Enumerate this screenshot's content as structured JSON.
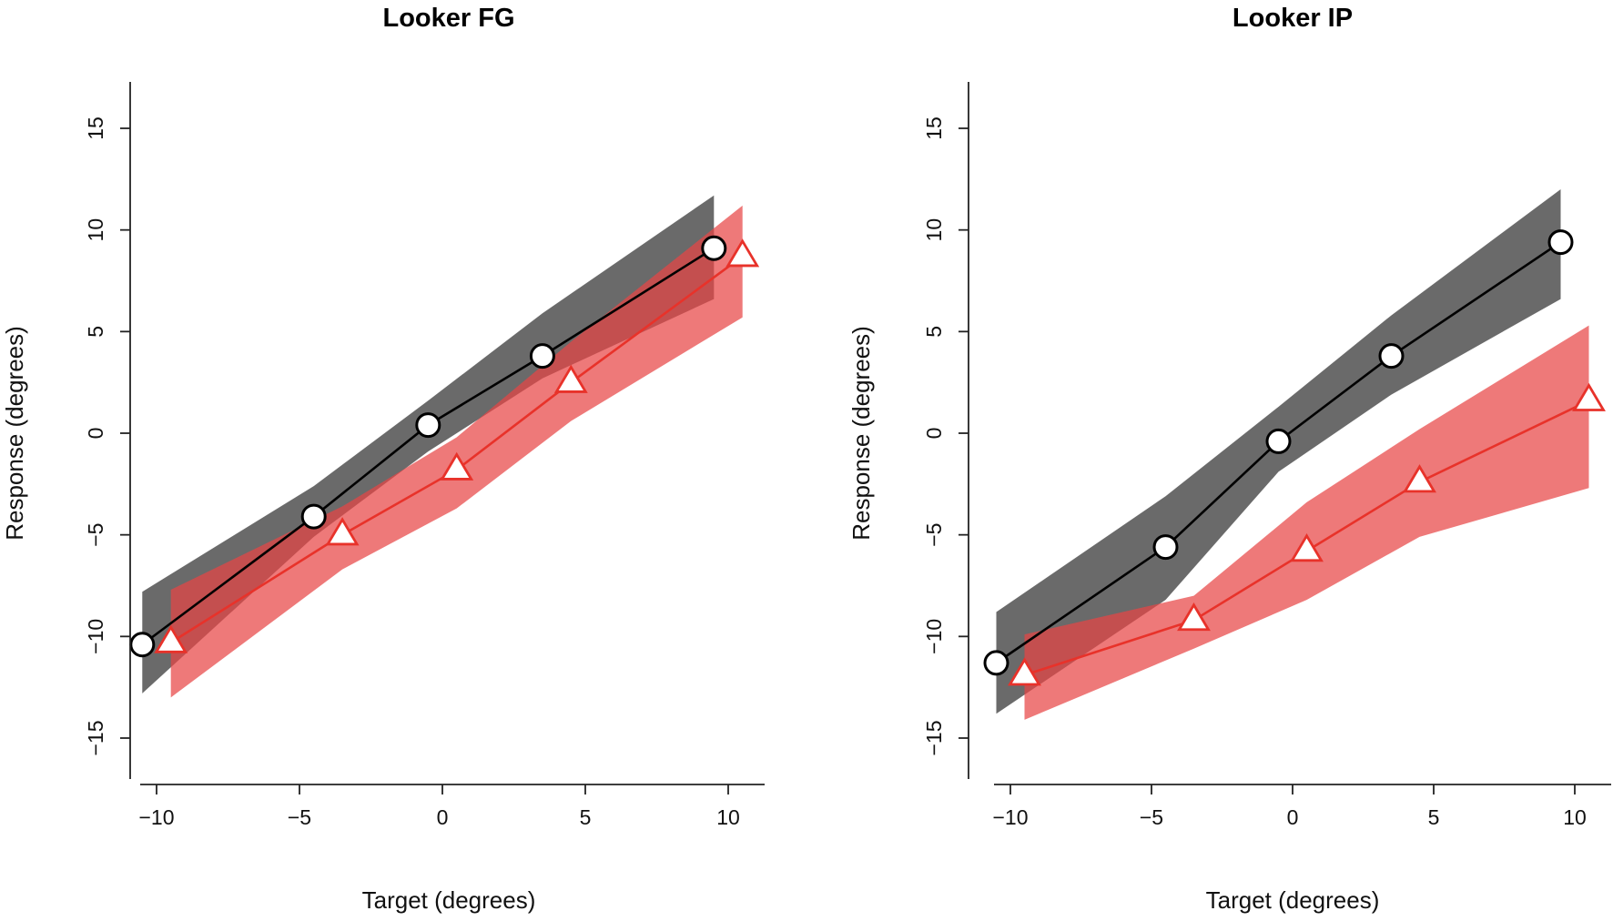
{
  "chart_data": [
    {
      "type": "line",
      "title": "Looker FG",
      "xlabel": "Target (degrees)",
      "ylabel": "Response (degrees)",
      "xlim": [
        -11,
        11
      ],
      "ylim": [
        -17,
        17
      ],
      "xticks": [
        -10,
        -5,
        0,
        5,
        10
      ],
      "yticks": [
        -15,
        -10,
        -5,
        0,
        5,
        10,
        15
      ],
      "xtick_labels": [
        "−10",
        "−5",
        "0",
        "5",
        "10"
      ],
      "ytick_labels": [
        "−15",
        "−10",
        "−5",
        "0",
        "5",
        "10",
        "15"
      ],
      "series": [
        {
          "name": "black-circles",
          "marker": "circle",
          "color": "#000000",
          "band_color": "#5a5a5a",
          "x": [
            -10.5,
            -4.5,
            -0.5,
            3.5,
            9.5
          ],
          "y": [
            -10.4,
            -4.1,
            0.4,
            3.8,
            9.1
          ],
          "band_upper": [
            -7.8,
            -2.6,
            1.6,
            5.9,
            11.7
          ],
          "band_lower": [
            -12.8,
            -5.1,
            -0.9,
            2.7,
            6.6
          ]
        },
        {
          "name": "red-triangles",
          "marker": "triangle",
          "color": "#e8322a",
          "band_color": "#e84545",
          "x": [
            -9.5,
            -3.5,
            0.5,
            4.5,
            10.5
          ],
          "y": [
            -10.3,
            -5.0,
            -1.8,
            2.5,
            8.7
          ],
          "band_upper": [
            -7.7,
            -3.6,
            -0.2,
            4.5,
            11.2
          ],
          "band_lower": [
            -13.0,
            -6.7,
            -3.7,
            0.6,
            5.7
          ]
        }
      ]
    },
    {
      "type": "line",
      "title": "Looker IP",
      "xlabel": "Target (degrees)",
      "ylabel": "Response (degrees)",
      "xlim": [
        -11,
        11
      ],
      "ylim": [
        -17,
        17
      ],
      "xticks": [
        -10,
        -5,
        0,
        5,
        10
      ],
      "yticks": [
        -15,
        -10,
        -5,
        0,
        5,
        10,
        15
      ],
      "xtick_labels": [
        "−10",
        "−5",
        "0",
        "5",
        "10"
      ],
      "ytick_labels": [
        "−15",
        "−10",
        "−5",
        "0",
        "5",
        "10",
        "15"
      ],
      "series": [
        {
          "name": "black-circles",
          "marker": "circle",
          "color": "#000000",
          "band_color": "#5a5a5a",
          "x": [
            -10.5,
            -4.5,
            -0.5,
            3.5,
            9.5
          ],
          "y": [
            -11.3,
            -5.6,
            -0.4,
            3.8,
            9.4
          ],
          "band_upper": [
            -8.8,
            -3.1,
            1.3,
            5.8,
            12.0
          ],
          "band_lower": [
            -13.8,
            -8.2,
            -1.9,
            1.9,
            6.6
          ]
        },
        {
          "name": "red-triangles",
          "marker": "triangle",
          "color": "#e8322a",
          "band_color": "#e84545",
          "x": [
            -9.5,
            -3.5,
            0.5,
            4.5,
            10.5
          ],
          "y": [
            -11.9,
            -9.2,
            -5.8,
            -2.4,
            1.6
          ],
          "band_upper": [
            -9.9,
            -8.0,
            -3.4,
            0.2,
            5.3
          ],
          "band_lower": [
            -14.1,
            -10.6,
            -8.2,
            -5.1,
            -2.7
          ]
        }
      ]
    }
  ]
}
